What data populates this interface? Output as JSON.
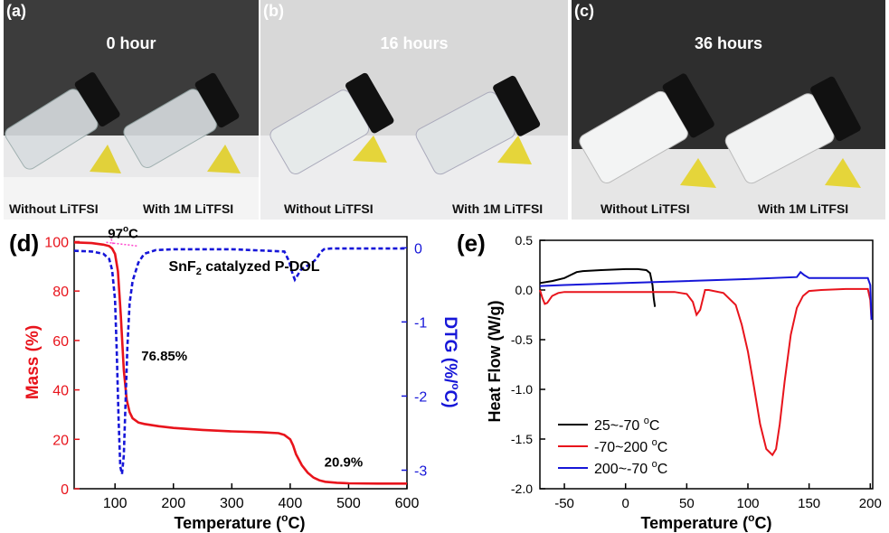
{
  "photos": [
    {
      "label": "(a)",
      "title": "0 hour",
      "left_caption": "Without LiTFSI",
      "right_caption": "With 1M LiTFSI"
    },
    {
      "label": "(b)",
      "title": "16 hours",
      "left_caption": "Without LiTFSI",
      "right_caption": "With 1M LiTFSI"
    },
    {
      "label": "(c)",
      "title": "36 hours",
      "left_caption": "Without LiTFSI",
      "right_caption": "With 1M LiTFSI"
    }
  ],
  "colors": {
    "mass": "#e8141c",
    "dtg": "#1616d8",
    "pink": "#ff44cc",
    "black": "#000000",
    "red": "#e8141c",
    "blue": "#1616d8"
  },
  "chart_data": [
    {
      "panel": "(d)",
      "type": "line",
      "title": "SnF2 catalyzed P-DOL",
      "title_main": "SnF",
      "title_sub": "2",
      "title_rest": " catalyzed P-DOL",
      "xlabel": "Temperature (°C)",
      "xlabel_pre": "Temperature (",
      "xlabel_sup": "o",
      "xlabel_post": "C)",
      "ylabel": "Mass (%)",
      "y2label": "DTG (%/°C)",
      "y2label_pre": "DTG (%/",
      "y2label_sup": "o",
      "y2label_post": "C)",
      "xlim": [
        30,
        600
      ],
      "ylim": [
        0,
        102
      ],
      "y2lim": [
        -3.25,
        0.15
      ],
      "xticks": [
        100,
        200,
        300,
        400,
        500,
        600
      ],
      "yticks": [
        0,
        20,
        40,
        60,
        80,
        100
      ],
      "y2ticks": [
        0,
        -1,
        -2,
        -3
      ],
      "annotations": [
        {
          "text_pre": "97",
          "text_sup": "o",
          "text_post": "C",
          "x": 97,
          "y": 100
        },
        {
          "text": "76.85%",
          "x": 145,
          "y": 52
        },
        {
          "text": "20.9%",
          "x": 505,
          "y": 9
        }
      ],
      "series": [
        {
          "name": "Mass",
          "axis": "left",
          "style": "solid",
          "x": [
            30,
            60,
            80,
            90,
            95,
            100,
            105,
            110,
            115,
            120,
            125,
            130,
            140,
            150,
            175,
            200,
            250,
            300,
            350,
            380,
            390,
            400,
            405,
            410,
            420,
            430,
            440,
            450,
            460,
            480,
            500,
            550,
            600
          ],
          "y": [
            99.7,
            99.4,
            98.8,
            98.2,
            97.2,
            95,
            88,
            70,
            48,
            36,
            31,
            28.5,
            26.8,
            26.2,
            25.3,
            24.6,
            23.8,
            23.2,
            22.9,
            22.5,
            21.8,
            20,
            17.5,
            14,
            9.5,
            6.5,
            4.5,
            3.4,
            2.8,
            2.4,
            2.2,
            2.1,
            2.1
          ]
        },
        {
          "name": "DTG",
          "axis": "right",
          "style": "dashed",
          "x": [
            30,
            60,
            80,
            90,
            95,
            100,
            103,
            106,
            109,
            112,
            115,
            118,
            121,
            125,
            130,
            140,
            150,
            170,
            200,
            300,
            390,
            398,
            404,
            408,
            412,
            418,
            425,
            435,
            445,
            452,
            458,
            470,
            500,
            600
          ],
          "y": [
            -0.04,
            -0.05,
            -0.08,
            -0.15,
            -0.3,
            -0.7,
            -1.4,
            -2.3,
            -2.95,
            -3.05,
            -2.8,
            -2.1,
            -1.35,
            -0.75,
            -0.45,
            -0.2,
            -0.08,
            -0.03,
            -0.02,
            -0.02,
            -0.05,
            -0.18,
            -0.35,
            -0.43,
            -0.38,
            -0.3,
            -0.26,
            -0.22,
            -0.15,
            -0.06,
            -0.02,
            -0.01,
            -0.01,
            -0.01
          ]
        }
      ]
    },
    {
      "panel": "(e)",
      "type": "line",
      "xlabel": "Temperature (°C)",
      "xlabel_pre": "Temperature (",
      "xlabel_sup": "o",
      "xlabel_post": "C)",
      "ylabel": "Heat Flow (W/g)",
      "xlim": [
        -70,
        202
      ],
      "ylim": [
        -2.0,
        0.5
      ],
      "xticks": [
        -50,
        0,
        50,
        100,
        150,
        200
      ],
      "yticks": [
        0.5,
        0.0,
        -0.5,
        -1.0,
        -1.5,
        -2.0
      ],
      "ytick_labels": [
        "0.5",
        "0.0",
        "-0.5",
        "-1.0",
        "-1.5",
        "-2.0"
      ],
      "legend_position": "bottom-left",
      "series": [
        {
          "name": "25~-70 °C",
          "name_pre": "25~-70 ",
          "name_sup": "o",
          "name_post": "C",
          "color": "#000000",
          "x": [
            -70,
            -60,
            -50,
            -45,
            -40,
            -35,
            -20,
            0,
            10,
            17,
            20,
            22,
            23,
            24
          ],
          "y": [
            0.07,
            0.09,
            0.12,
            0.15,
            0.18,
            0.19,
            0.2,
            0.21,
            0.21,
            0.2,
            0.17,
            0.05,
            -0.08,
            -0.17
          ]
        },
        {
          "name": "-70~200 °C",
          "name_pre": "-70~200 ",
          "name_sup": "o",
          "name_post": "C",
          "color": "#e8141c",
          "x": [
            -70,
            -68,
            -66,
            -64,
            -60,
            -55,
            -50,
            -40,
            0,
            40,
            50,
            55,
            58,
            61,
            65,
            68,
            80,
            90,
            95,
            100,
            105,
            110,
            115,
            120,
            123,
            126,
            130,
            135,
            140,
            145,
            150,
            160,
            180,
            198,
            200,
            201
          ],
          "y": [
            0.0,
            -0.08,
            -0.14,
            -0.13,
            -0.06,
            -0.03,
            -0.02,
            -0.02,
            -0.02,
            -0.02,
            -0.04,
            -0.12,
            -0.25,
            -0.2,
            0.0,
            0.0,
            -0.03,
            -0.15,
            -0.35,
            -0.62,
            -0.98,
            -1.35,
            -1.6,
            -1.66,
            -1.6,
            -1.35,
            -0.92,
            -0.45,
            -0.18,
            -0.06,
            -0.01,
            0.0,
            0.01,
            0.01,
            -0.1,
            -0.3
          ]
        },
        {
          "name": "200~-70 °C",
          "name_pre": "200~-70 ",
          "name_sup": "o",
          "name_post": "C",
          "color": "#1616d8",
          "x": [
            -70,
            -50,
            0,
            50,
            100,
            140,
            143,
            146,
            150,
            170,
            195,
            198,
            200,
            201
          ],
          "y": [
            0.04,
            0.05,
            0.07,
            0.09,
            0.11,
            0.13,
            0.18,
            0.15,
            0.12,
            0.12,
            0.12,
            0.12,
            0.05,
            -0.3
          ]
        }
      ]
    }
  ]
}
